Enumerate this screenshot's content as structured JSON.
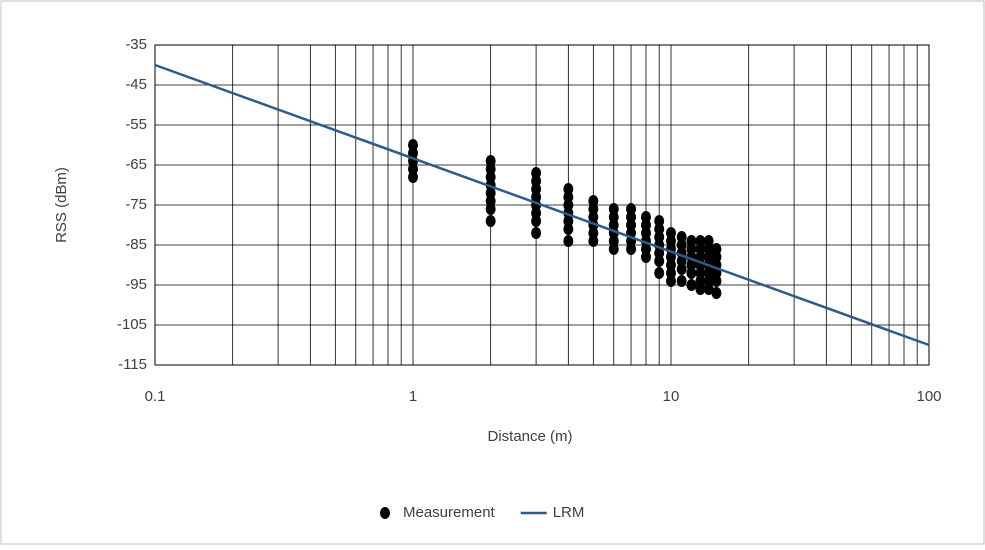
{
  "chart_data": {
    "type": "scatter",
    "x_label": "Distance (m)",
    "y_label": "RSS (dBm)",
    "xlim": [
      0.1,
      100
    ],
    "xticks": [
      0.1,
      1,
      10,
      100
    ],
    "xscale": "log",
    "minor_grid": true,
    "ylim": [
      -115,
      -35
    ],
    "yticks": [
      -35,
      -45,
      -55,
      -65,
      -75,
      -85,
      -95,
      -105,
      -115
    ],
    "grid": true,
    "legend": "bottom",
    "series": [
      {
        "name": "Measurement",
        "color": "#000000",
        "mode": "markers",
        "x": [
          1,
          1,
          1,
          1,
          1,
          2,
          2,
          2,
          2,
          2,
          2,
          2,
          2,
          3,
          3,
          3,
          3,
          3,
          3,
          3,
          3,
          4,
          4,
          4,
          4,
          4,
          4,
          4,
          5,
          5,
          5,
          5,
          5,
          5,
          6,
          6,
          6,
          6,
          6,
          6,
          7,
          7,
          7,
          7,
          7,
          7,
          8,
          8,
          8,
          8,
          8,
          8,
          9,
          9,
          9,
          9,
          9,
          9,
          9,
          10,
          10,
          10,
          10,
          10,
          10,
          10,
          11,
          11,
          11,
          11,
          11,
          11,
          12,
          12,
          12,
          12,
          12,
          12,
          13,
          13,
          13,
          13,
          13,
          13,
          13,
          14,
          14,
          14,
          14,
          14,
          14,
          14,
          15,
          15,
          15,
          15,
          15,
          15
        ],
        "values": [
          -60,
          -62,
          -64,
          -66,
          -68,
          -64,
          -66,
          -68,
          -70,
          -72,
          -74,
          -76,
          -79,
          -67,
          -69,
          -71,
          -73,
          -75,
          -77,
          -79,
          -82,
          -71,
          -73,
          -75,
          -77,
          -79,
          -81,
          -84,
          -74,
          -76,
          -78,
          -80,
          -82,
          -84,
          -76,
          -78,
          -80,
          -82,
          -84,
          -86,
          -76,
          -78,
          -80,
          -82,
          -84,
          -86,
          -78,
          -80,
          -82,
          -84,
          -86,
          -88,
          -79,
          -81,
          -83,
          -85,
          -87,
          -89,
          -92,
          -82,
          -84,
          -86,
          -88,
          -90,
          -92,
          -94,
          -83,
          -85,
          -87,
          -89,
          -91,
          -94,
          -84,
          -86,
          -88,
          -90,
          -92,
          -95,
          -84,
          -86,
          -88,
          -90,
          -92,
          -94,
          -96,
          -84,
          -86,
          -88,
          -90,
          -92,
          -94,
          -96,
          -86,
          -88,
          -90,
          -92,
          -94,
          -97
        ]
      },
      {
        "name": "LRM",
        "color": "#2e5b8a",
        "mode": "line",
        "x": [
          0.1,
          100
        ],
        "values": [
          -40,
          -110
        ]
      }
    ]
  }
}
